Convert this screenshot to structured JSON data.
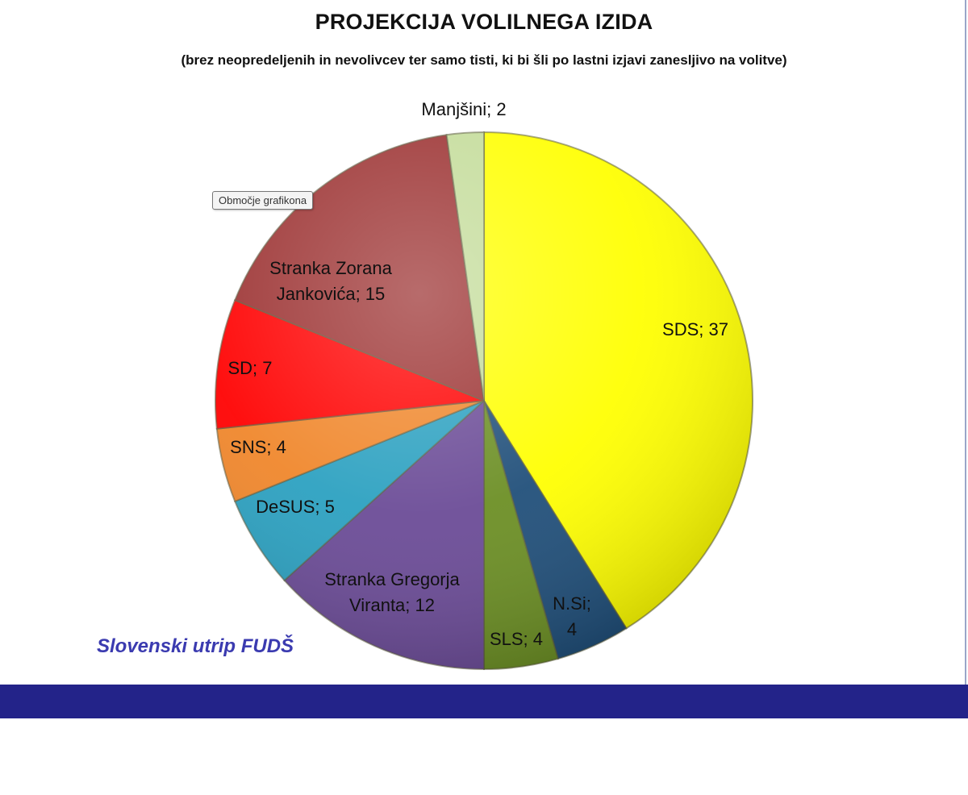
{
  "chart_data": {
    "type": "pie",
    "title": "PROJEKCIJA VOLILNEGA IZIDA",
    "subtitle": "(brez neopredeljenih in nevolivcev ter samo tisti, ki bi šli po lastni izjavi zanesljivo na volitve)",
    "slices": [
      {
        "label": "SDS; 37",
        "value": 37,
        "color": "#ffff00"
      },
      {
        "label": "N.Si; 4",
        "value": 4,
        "color": "#1f4e79"
      },
      {
        "label": "SLS; 4",
        "value": 4,
        "color": "#6b8e23"
      },
      {
        "label": "Stranka Gregorja Viranta; 12",
        "value": 12,
        "color": "#6a4a96"
      },
      {
        "label": "DeSUS; 5",
        "value": 5,
        "color": "#2aa0c0"
      },
      {
        "label": "SNS; 4",
        "value": 4,
        "color": "#f0862a"
      },
      {
        "label": "SD; 7",
        "value": 7,
        "color": "#ff0000"
      },
      {
        "label": "Stranka Zorana Jankovića; 15",
        "value": 15,
        "color": "#9c3232"
      },
      {
        "label": "Manjšini; 2",
        "value": 2,
        "color": "#c4dc9a"
      }
    ]
  },
  "tooltip": "Območje grafikona",
  "source": "Slovenski utrip FUDŠ",
  "colors": {
    "band": "#232389",
    "source_text": "#3b3bb0"
  }
}
